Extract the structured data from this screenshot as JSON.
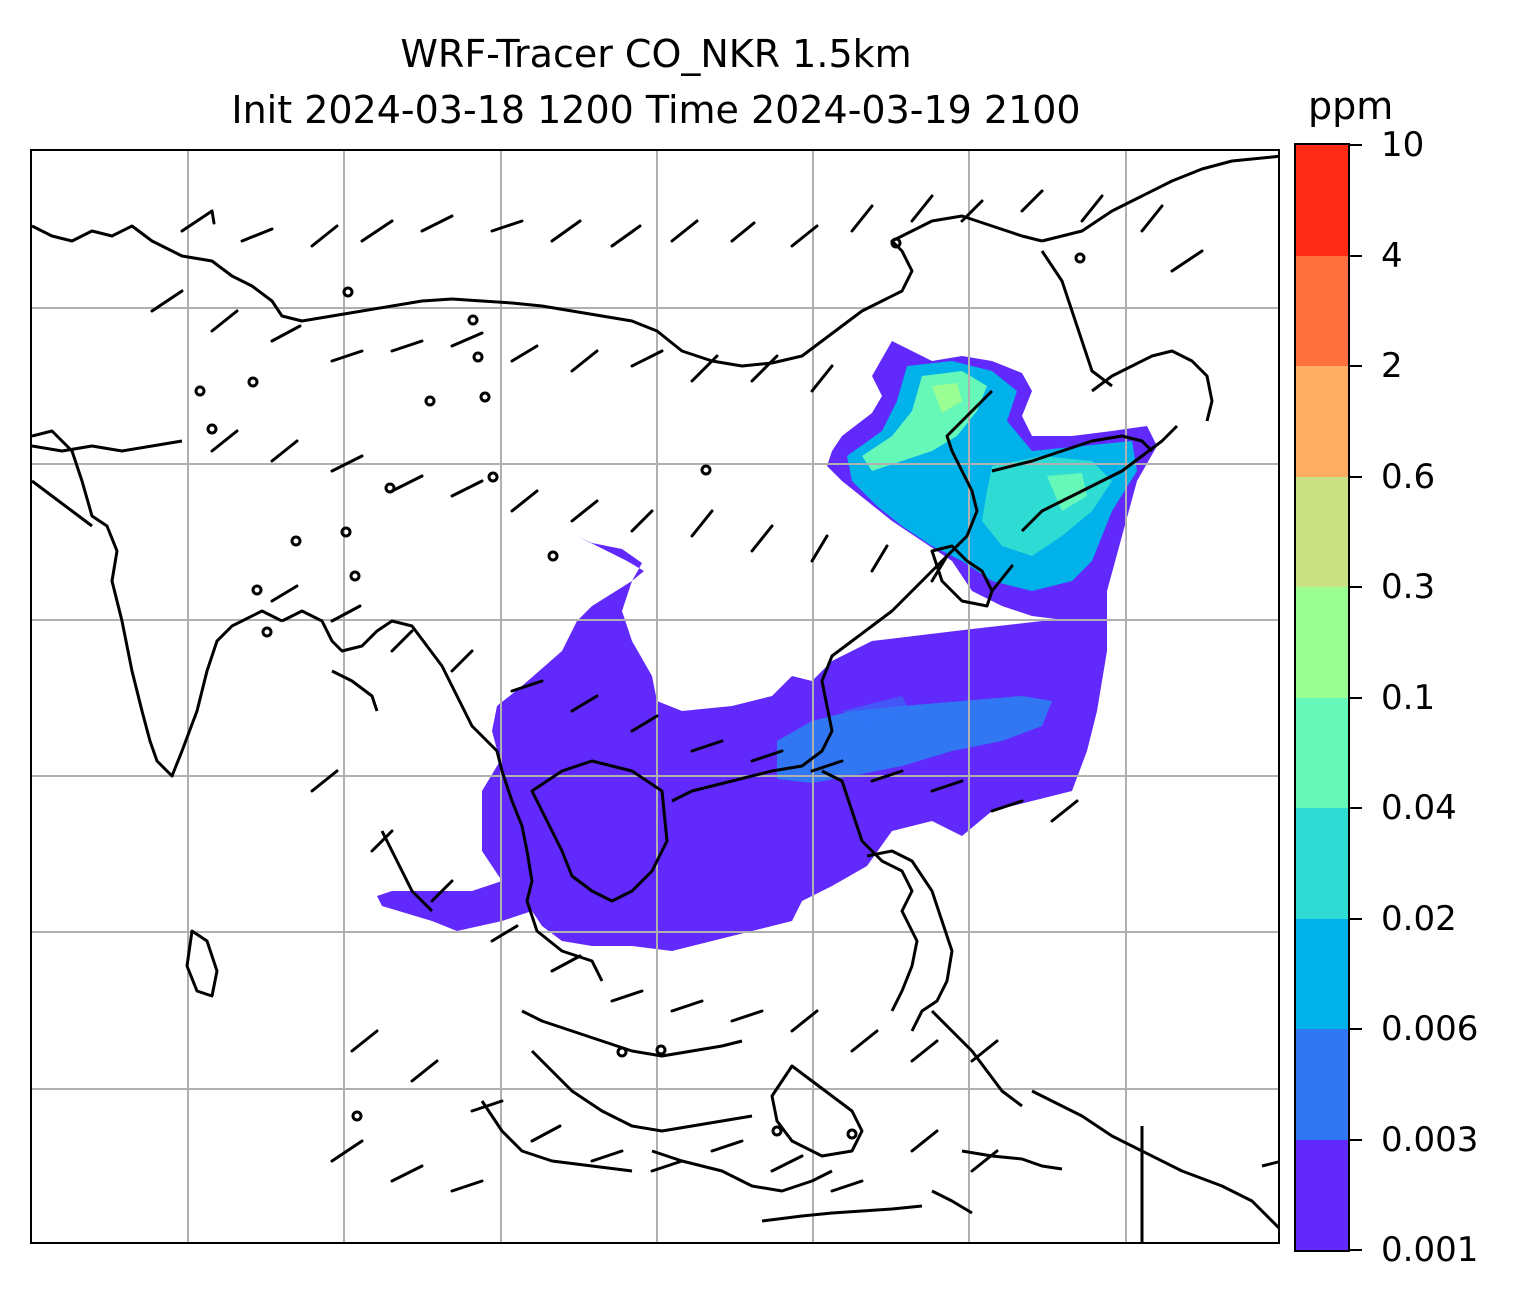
{
  "title": {
    "line1": "WRF-Tracer CO_NKR 1.5km",
    "line2": "Init 2024-03-18 1200 Time 2024-03-19 2100"
  },
  "colorbar": {
    "unit": "ppm",
    "levels": [
      "0.001",
      "0.003",
      "0.006",
      "0.02",
      "0.04",
      "0.1",
      "0.3",
      "0.6",
      "2",
      "4",
      "10"
    ],
    "colors": [
      "#6129fb",
      "#3177f4",
      "#00b1ea",
      "#2edcd4",
      "#66f8b8",
      "#9afe92",
      "#cbe082",
      "#ffad60",
      "#ff703e",
      "#ff2b17"
    ]
  },
  "map": {
    "gridlines": "on",
    "features": [
      "coastlines",
      "country-borders",
      "wind-barbs",
      "tracer-plume"
    ]
  }
}
